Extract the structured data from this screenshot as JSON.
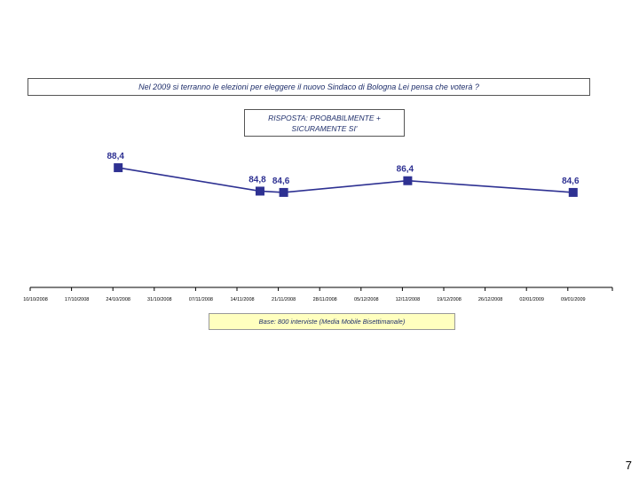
{
  "question": "Nel 2009 si terranno le elezioni per eleggere il nuovo Sindaco di Bologna Lei pensa che voterà ?",
  "answer_label": [
    "RISPOSTA: PROBABILMENTE +",
    "SICURAMENTE SI'"
  ],
  "base_note": "Base: 800 interviste (Media Mobile Bisettimanale)",
  "page_number": "7",
  "colors": {
    "line": "#2e3192",
    "marker": "#2e3192",
    "label": "#2e3192",
    "axis": "#000000"
  },
  "chart_data": {
    "type": "line",
    "x_ticks": [
      "10/10/2008",
      "17/10/2008",
      "24/10/2008",
      "31/10/2008",
      "07/11/2008",
      "14/11/2008",
      "21/11/2008",
      "28/11/2008",
      "05/12/2008",
      "12/12/2008",
      "19/12/2008",
      "26/12/2008",
      "02/01/2009",
      "09/01/2009"
    ],
    "series": [
      {
        "x": [
          "24/10/2008",
          "17/11/2008",
          "21/11/2008",
          "12/12/2008",
          "09/01/2009"
        ],
        "values": [
          88.4,
          84.8,
          84.6,
          86.4,
          84.6
        ],
        "labels": [
          "88,4",
          "84,8",
          "84,6",
          "86,4",
          "84,6"
        ]
      }
    ],
    "ylim": [
      70,
      91
    ],
    "grid": false,
    "legend": false
  }
}
